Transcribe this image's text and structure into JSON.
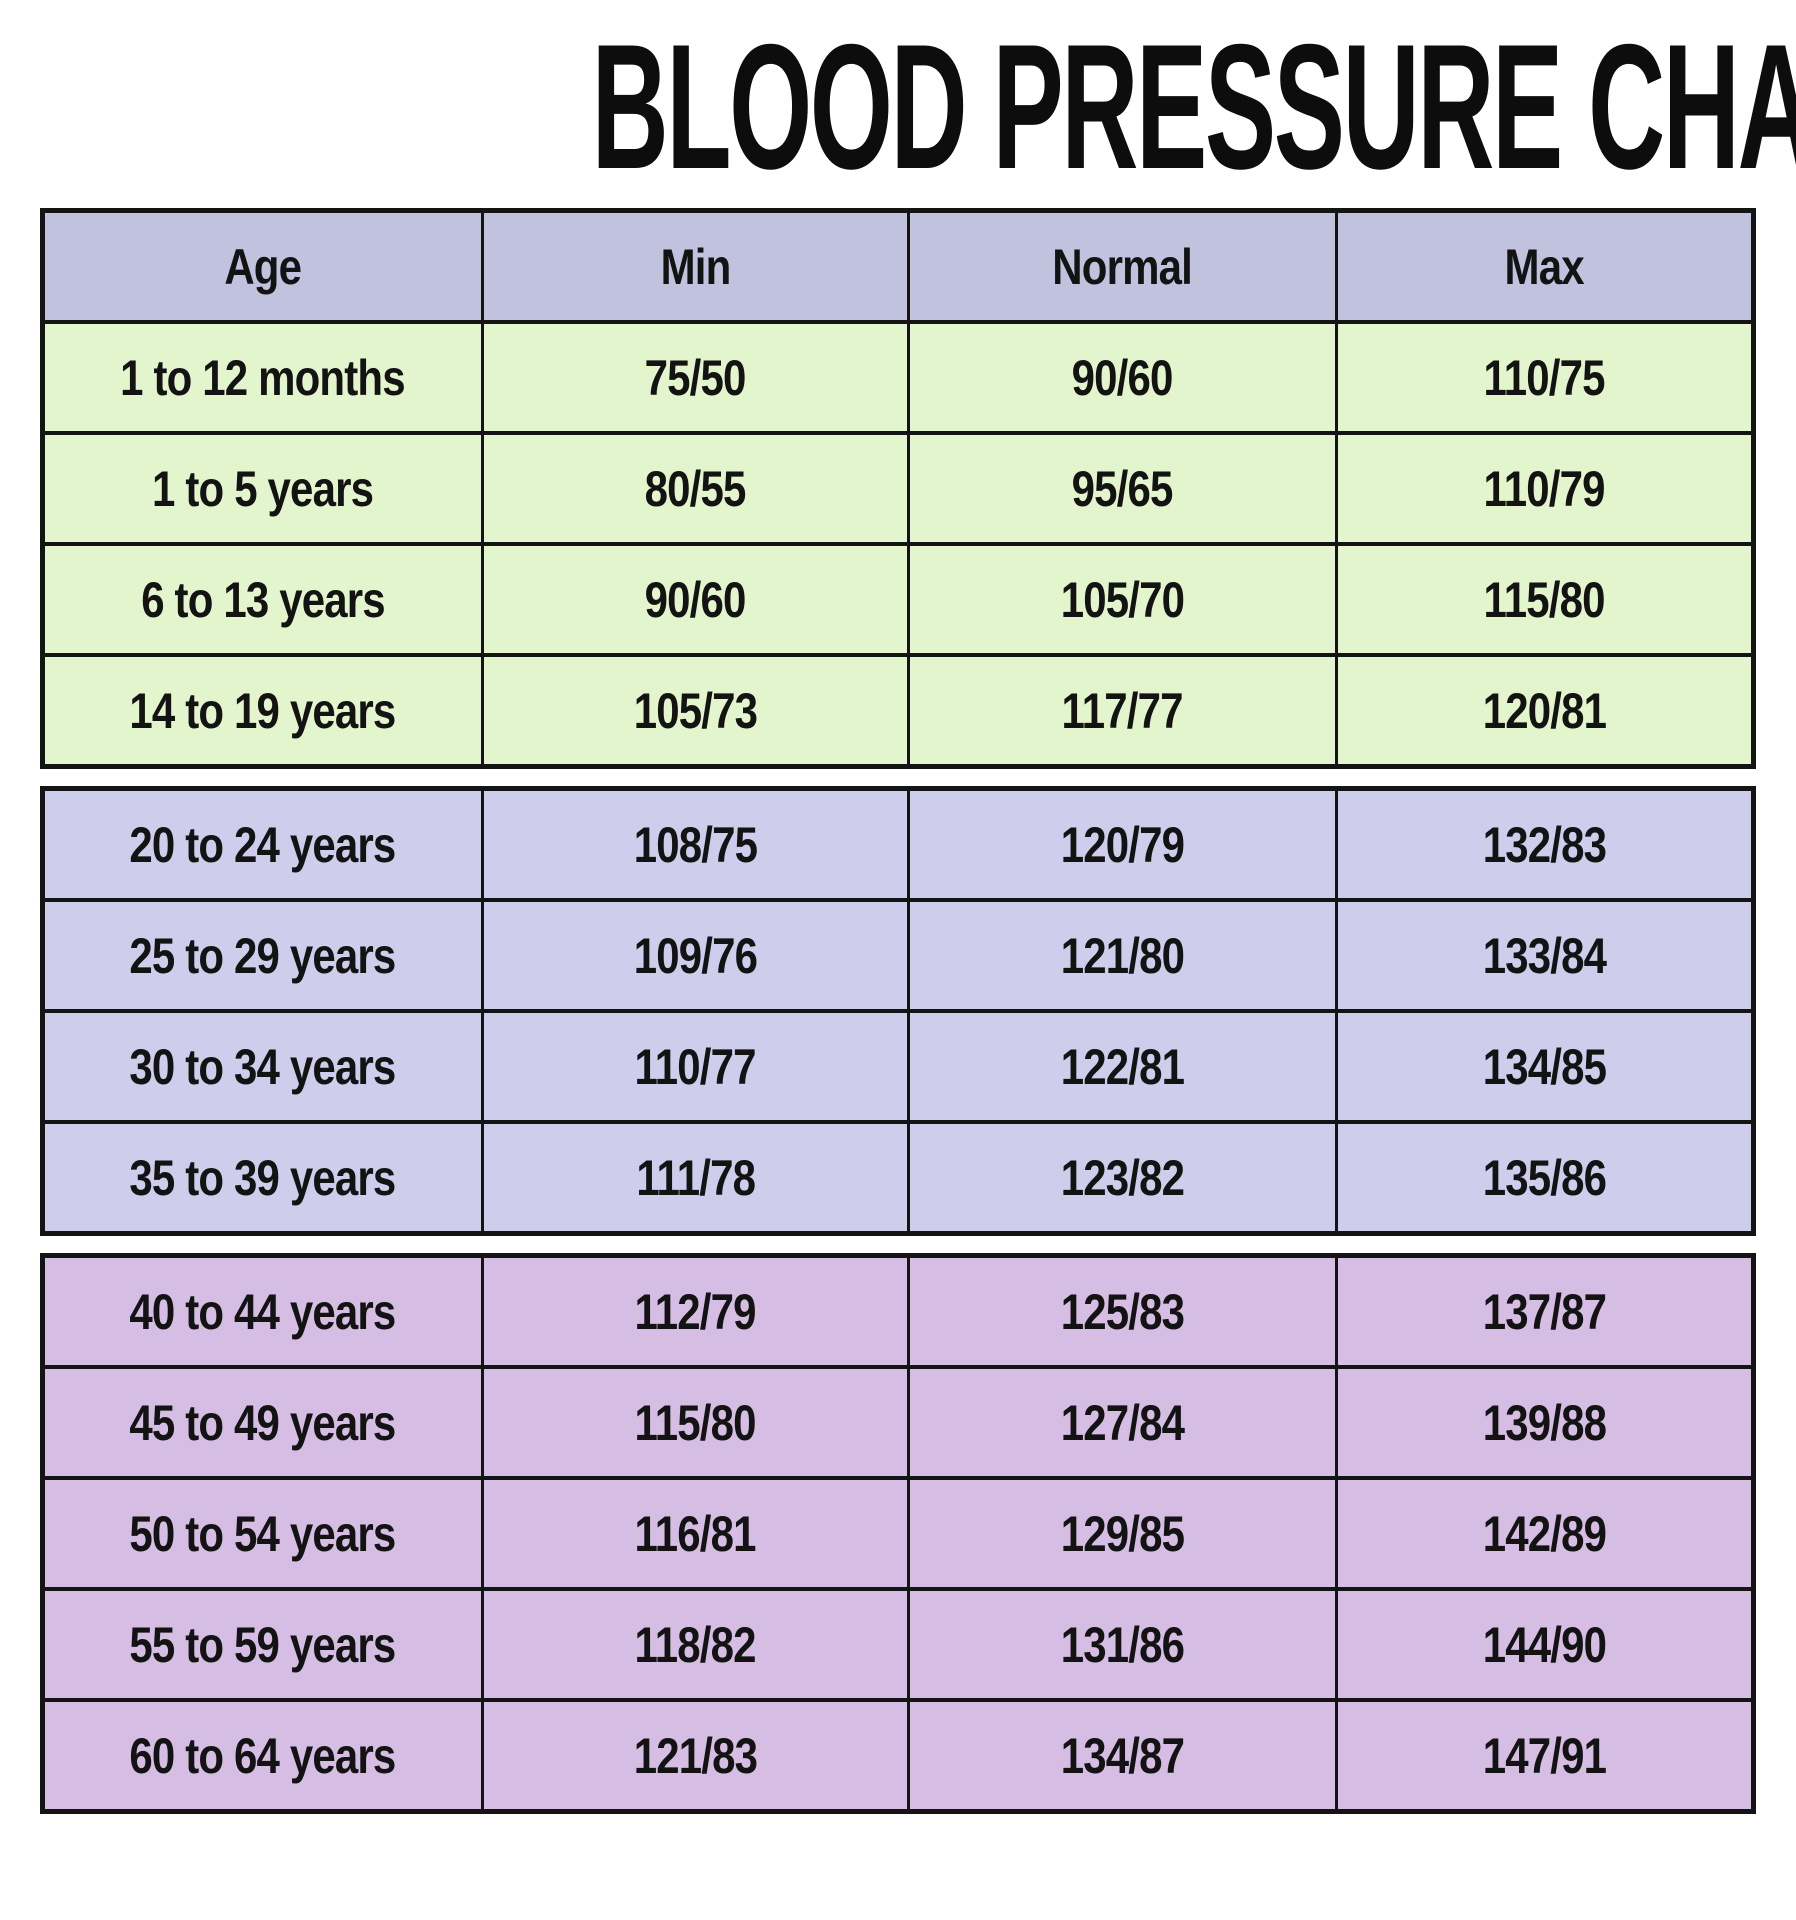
{
  "page_title": "BLOOD PRESSURE CHART BY AGE",
  "chart_data": {
    "type": "table",
    "title": "BLOOD PRESSURE CHART BY AGE",
    "columns": [
      "Age",
      "Min",
      "Normal",
      "Max"
    ],
    "header_color": "#c1c2de",
    "border_color": "#141414",
    "text_color": "#131313",
    "sections": [
      {
        "name": "infant-to-teen",
        "row_color": "#e3f5cc",
        "rows": [
          [
            "1 to 12 months",
            "75/50",
            "90/60",
            "110/75"
          ],
          [
            "1 to 5 years",
            "80/55",
            "95/65",
            "110/79"
          ],
          [
            "6 to 13 years",
            "90/60",
            "105/70",
            "115/80"
          ],
          [
            "14 to 19 years",
            "105/73",
            "117/77",
            "120/81"
          ]
        ]
      },
      {
        "name": "young-adult",
        "row_color": "#cecdeb",
        "rows": [
          [
            "20 to 24 years",
            "108/75",
            "120/79",
            "132/83"
          ],
          [
            "25 to 29 years",
            "109/76",
            "121/80",
            "133/84"
          ],
          [
            "30 to 34 years",
            "110/77",
            "122/81",
            "134/85"
          ],
          [
            "35 to 39 years",
            "111/78",
            "123/82",
            "135/86"
          ]
        ]
      },
      {
        "name": "middle-age",
        "row_color": "#d6bde3",
        "rows": [
          [
            "40 to 44 years",
            "112/79",
            "125/83",
            "137/87"
          ],
          [
            "45 to 49 years",
            "115/80",
            "127/84",
            "139/88"
          ],
          [
            "50 to 54 years",
            "116/81",
            "129/85",
            "142/89"
          ],
          [
            "55 to 59 years",
            "118/82",
            "131/86",
            "144/90"
          ],
          [
            "60 to 64 years",
            "121/83",
            "134/87",
            "147/91"
          ]
        ]
      }
    ]
  }
}
